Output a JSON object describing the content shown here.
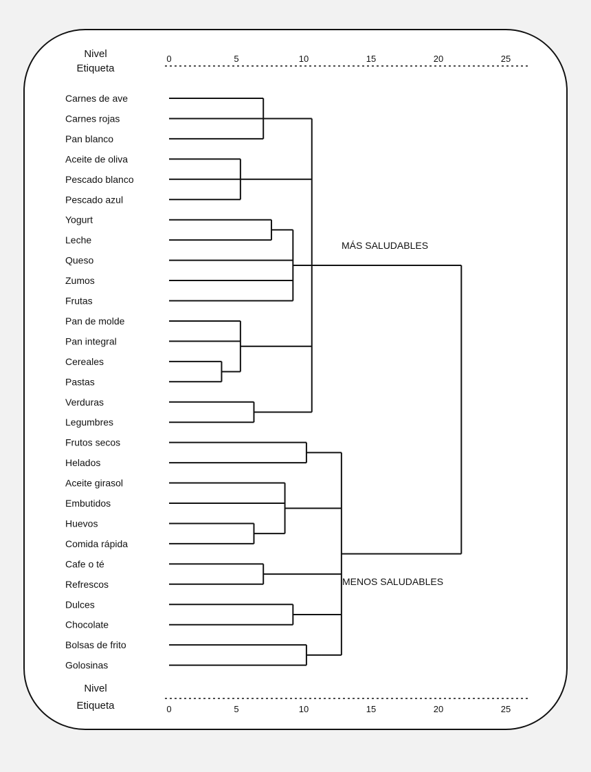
{
  "header": {
    "nivel": "Nivel",
    "etiqueta": "Etiqueta"
  },
  "axis": {
    "min": 0,
    "max": 25,
    "ticks": [
      "0",
      "5",
      "10",
      "15",
      "20",
      "25"
    ]
  },
  "groups": {
    "top": "MÁS SALUDABLES",
    "bottom": "MENOS SALUDABLES"
  },
  "chart_data": {
    "type": "dendrogram",
    "leaves": [
      "Carnes de ave",
      "Carnes rojas",
      "Pan blanco",
      "Aceite de oliva",
      "Pescado blanco",
      "Pescado azul",
      "Yogurt",
      "Leche",
      "Queso",
      "Zumos",
      "Frutas",
      "Pan de molde",
      "Pan integral",
      "Cereales",
      "Pastas",
      "Verduras",
      "Legumbres",
      "Frutos secos",
      "Helados",
      "Aceite girasol",
      "Embutidos",
      "Huevos",
      "Comida rápida",
      "Cafe o té",
      "Refrescos",
      "Dulces",
      "Chocolate",
      "Bolsas de frito",
      "Golosinas"
    ],
    "merges": [
      {
        "id": "A",
        "height": 7.0,
        "children": [
          "L0",
          "L1",
          "L2"
        ]
      },
      {
        "id": "B",
        "height": 5.3,
        "children": [
          "L3",
          "L4",
          "L5"
        ]
      },
      {
        "id": "C",
        "height": 7.6,
        "children": [
          "L6",
          "L7"
        ]
      },
      {
        "id": "D",
        "height": 9.2,
        "children": [
          "C",
          "L8",
          "L9",
          "L10"
        ]
      },
      {
        "id": "E",
        "height": 3.9,
        "children": [
          "L14",
          "L13"
        ]
      },
      {
        "id": "F",
        "height": 5.3,
        "children": [
          "L11",
          "L12",
          "E"
        ]
      },
      {
        "id": "G",
        "height": 6.3,
        "children": [
          "L15",
          "L16"
        ]
      },
      {
        "id": "H",
        "height": 10.6,
        "children": [
          "A",
          "B",
          "D",
          "F",
          "G"
        ]
      },
      {
        "id": "I",
        "height": 10.2,
        "children": [
          "L17",
          "L18"
        ]
      },
      {
        "id": "J",
        "height": 6.3,
        "children": [
          "L21",
          "L22"
        ]
      },
      {
        "id": "K",
        "height": 8.6,
        "children": [
          "L19",
          "L20",
          "J"
        ]
      },
      {
        "id": "L",
        "height": 7.0,
        "children": [
          "L23",
          "L24"
        ]
      },
      {
        "id": "M",
        "height": 9.2,
        "children": [
          "L25",
          "L26"
        ]
      },
      {
        "id": "N",
        "height": 10.2,
        "children": [
          "L27",
          "L28"
        ]
      },
      {
        "id": "O",
        "height": 11.3,
        "children": [
          "N"
        ]
      },
      {
        "id": "P",
        "height": 12.8,
        "children": [
          "I",
          "K",
          "L",
          "M",
          "O"
        ]
      },
      {
        "id": "R",
        "height": 21.7,
        "children": [
          "H",
          "P"
        ]
      }
    ]
  }
}
